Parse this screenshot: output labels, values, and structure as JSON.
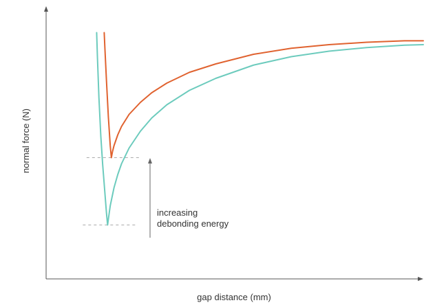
{
  "chart_data": {
    "type": "line",
    "title": "",
    "xlabel": "gap distance (mm)",
    "ylabel": "normal force (N)",
    "xlim": [
      0,
      100
    ],
    "ylim": [
      0,
      100
    ],
    "ticks": "none",
    "grid": false,
    "legend": "none",
    "annotation": {
      "line1": "increasing",
      "line2": "debonding energy"
    },
    "series": [
      {
        "color": "#e0622f",
        "x": [
          15.4,
          15.6,
          16.0,
          16.5,
          17.0,
          17.3,
          17.6,
          18.0,
          19.0,
          20.0,
          22.0,
          25.0,
          28.0,
          32.0,
          38.0,
          45.0,
          55.0,
          65.0,
          75.0,
          85.0,
          95.0,
          100.0
        ],
        "y": [
          95.0,
          88.0,
          75.0,
          60.0,
          48.0,
          43.0,
          45.5,
          48.0,
          52.5,
          56.0,
          61.0,
          66.0,
          70.0,
          74.0,
          78.5,
          82.0,
          86.0,
          88.5,
          90.0,
          91.0,
          91.6,
          91.6
        ]
      },
      {
        "color": "#6ccbbd",
        "x": [
          13.4,
          13.6,
          14.0,
          14.5,
          15.0,
          15.5,
          16.0,
          16.3,
          16.6,
          17.0,
          18.0,
          19.0,
          20.0,
          22.0,
          25.0,
          28.0,
          32.0,
          38.0,
          45.0,
          55.0,
          65.0,
          75.0,
          85.0,
          95.0,
          100.0
        ],
        "y": [
          95.0,
          85.0,
          68.0,
          52.0,
          40.0,
          30.0,
          20.0,
          15.0,
          18.5,
          23.0,
          30.5,
          36.0,
          40.5,
          47.0,
          54.0,
          59.5,
          65.0,
          71.0,
          76.0,
          81.5,
          85.0,
          87.3,
          88.8,
          89.8,
          90.0
        ]
      }
    ]
  }
}
